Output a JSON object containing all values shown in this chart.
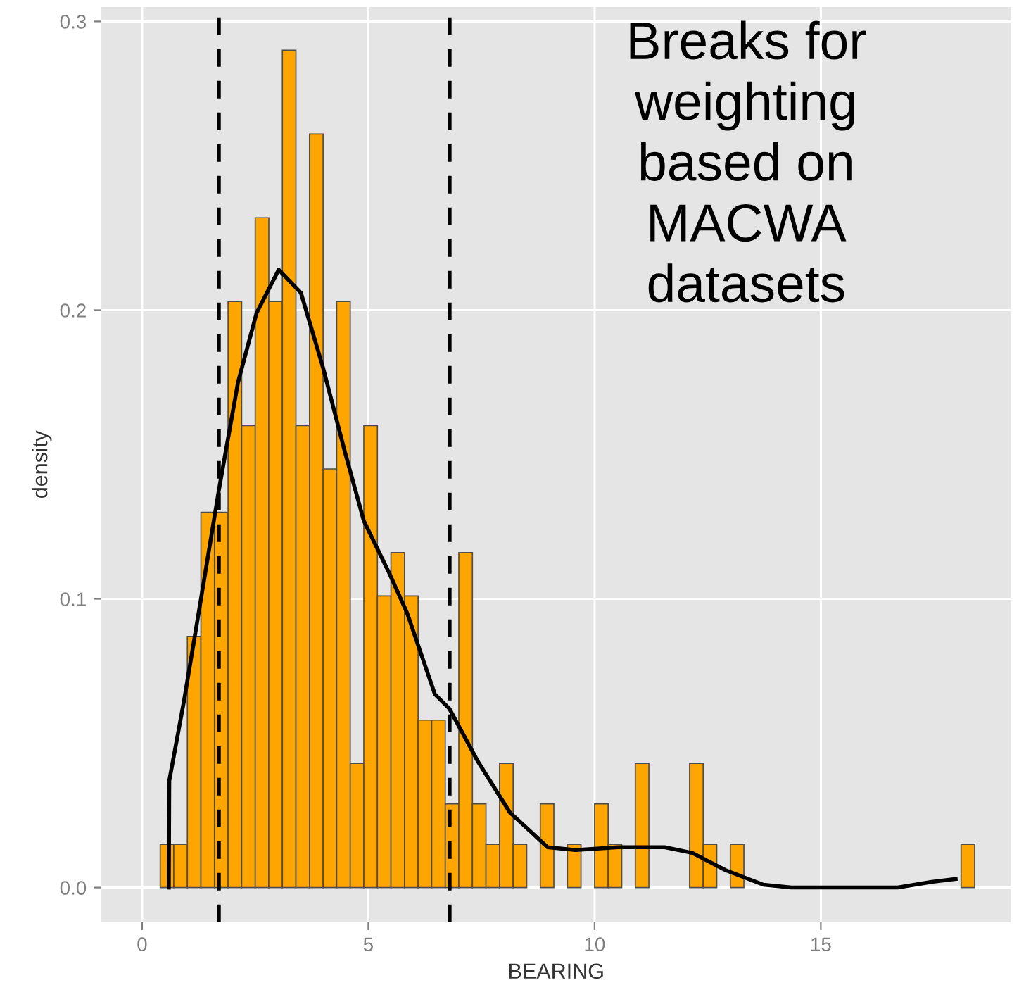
{
  "chart_data": {
    "type": "histogram",
    "xlabel": "BEARING",
    "ylabel": "density",
    "bins": [
      0.4,
      0.7,
      1.0,
      1.3,
      1.6,
      1.9,
      2.2,
      2.5,
      2.8,
      3.1,
      3.4,
      3.7,
      4.0,
      4.3,
      4.6,
      4.9,
      5.2,
      5.5,
      5.8,
      6.1,
      6.4,
      6.7,
      7.0,
      7.3,
      7.6,
      7.9,
      8.2,
      8.5,
      8.8,
      9.1,
      9.4,
      9.7,
      10.0,
      10.3,
      10.6,
      10.9,
      11.2,
      11.5,
      11.8,
      12.1,
      12.4,
      12.7,
      13.0,
      13.3,
      13.6,
      13.9,
      14.2,
      14.5,
      14.8,
      15.1,
      15.4,
      15.7,
      16.0,
      16.3,
      16.6,
      16.9,
      17.2,
      17.5,
      17.8,
      18.1,
      18.4
    ],
    "series": [
      {
        "color": "#ffa500",
        "values": [
          0.015,
          0.015,
          0.087,
          0.13,
          0.13,
          0.203,
          0.16,
          0.232,
          0.203,
          0.29,
          0.16,
          0.261,
          0.145,
          0.203,
          0.043,
          0.16,
          0.101,
          0.116,
          0.101,
          0.058,
          0.058,
          0.029,
          0.116,
          0.029,
          0.015,
          0.043,
          0.015,
          0,
          0.029,
          0,
          0.015,
          0,
          0.029,
          0.015,
          0,
          0.043,
          0,
          0,
          0,
          0.043,
          0.015,
          0,
          0.015,
          0,
          0,
          0,
          0,
          0,
          0,
          0,
          0,
          0,
          0,
          0,
          0,
          0,
          0,
          0,
          0,
          0.015
        ]
      },
      {
        "type": "line",
        "color": "#000000",
        "line_style": "solid",
        "marker": "none",
        "x": [
          0.59,
          0.6,
          0.93,
          1.28,
          1.7,
          2.12,
          2.53,
          3.02,
          3.51,
          4.0,
          4.48,
          4.9,
          5.46,
          5.86,
          6.47,
          6.79,
          7.41,
          8.13,
          8.96,
          9.58,
          10.52,
          11.55,
          12.16,
          12.9,
          13.73,
          14.35,
          16.7,
          17.45,
          17.98
        ],
        "values": [
          0,
          0.037,
          0.065,
          0.098,
          0.138,
          0.175,
          0.199,
          0.214,
          0.206,
          0.18,
          0.151,
          0.127,
          0.109,
          0.095,
          0.067,
          0.062,
          0.044,
          0.026,
          0.014,
          0.013,
          0.014,
          0.014,
          0.012,
          0.006,
          0.001,
          0,
          0,
          0.002,
          0.003
        ]
      }
    ],
    "ref_lines": [
      {
        "axis": "x",
        "value": 1.7,
        "color": "#000000",
        "line_style": "dashed"
      },
      {
        "axis": "x",
        "value": 6.8,
        "color": "#000000",
        "line_style": "dashed"
      }
    ],
    "annotations": [
      "Breaks for\nweighting\nbased on\nMACWA\ndatasets"
    ],
    "xlim": [
      -0.9,
      19.2
    ],
    "ylim": [
      -0.012,
      0.305
    ],
    "xticks": [
      0,
      5,
      10,
      15
    ],
    "yticks": [
      {
        "value": 0,
        "label": "0.0"
      },
      0.1,
      0.2,
      0.3
    ],
    "grid": true,
    "legend": false
  }
}
